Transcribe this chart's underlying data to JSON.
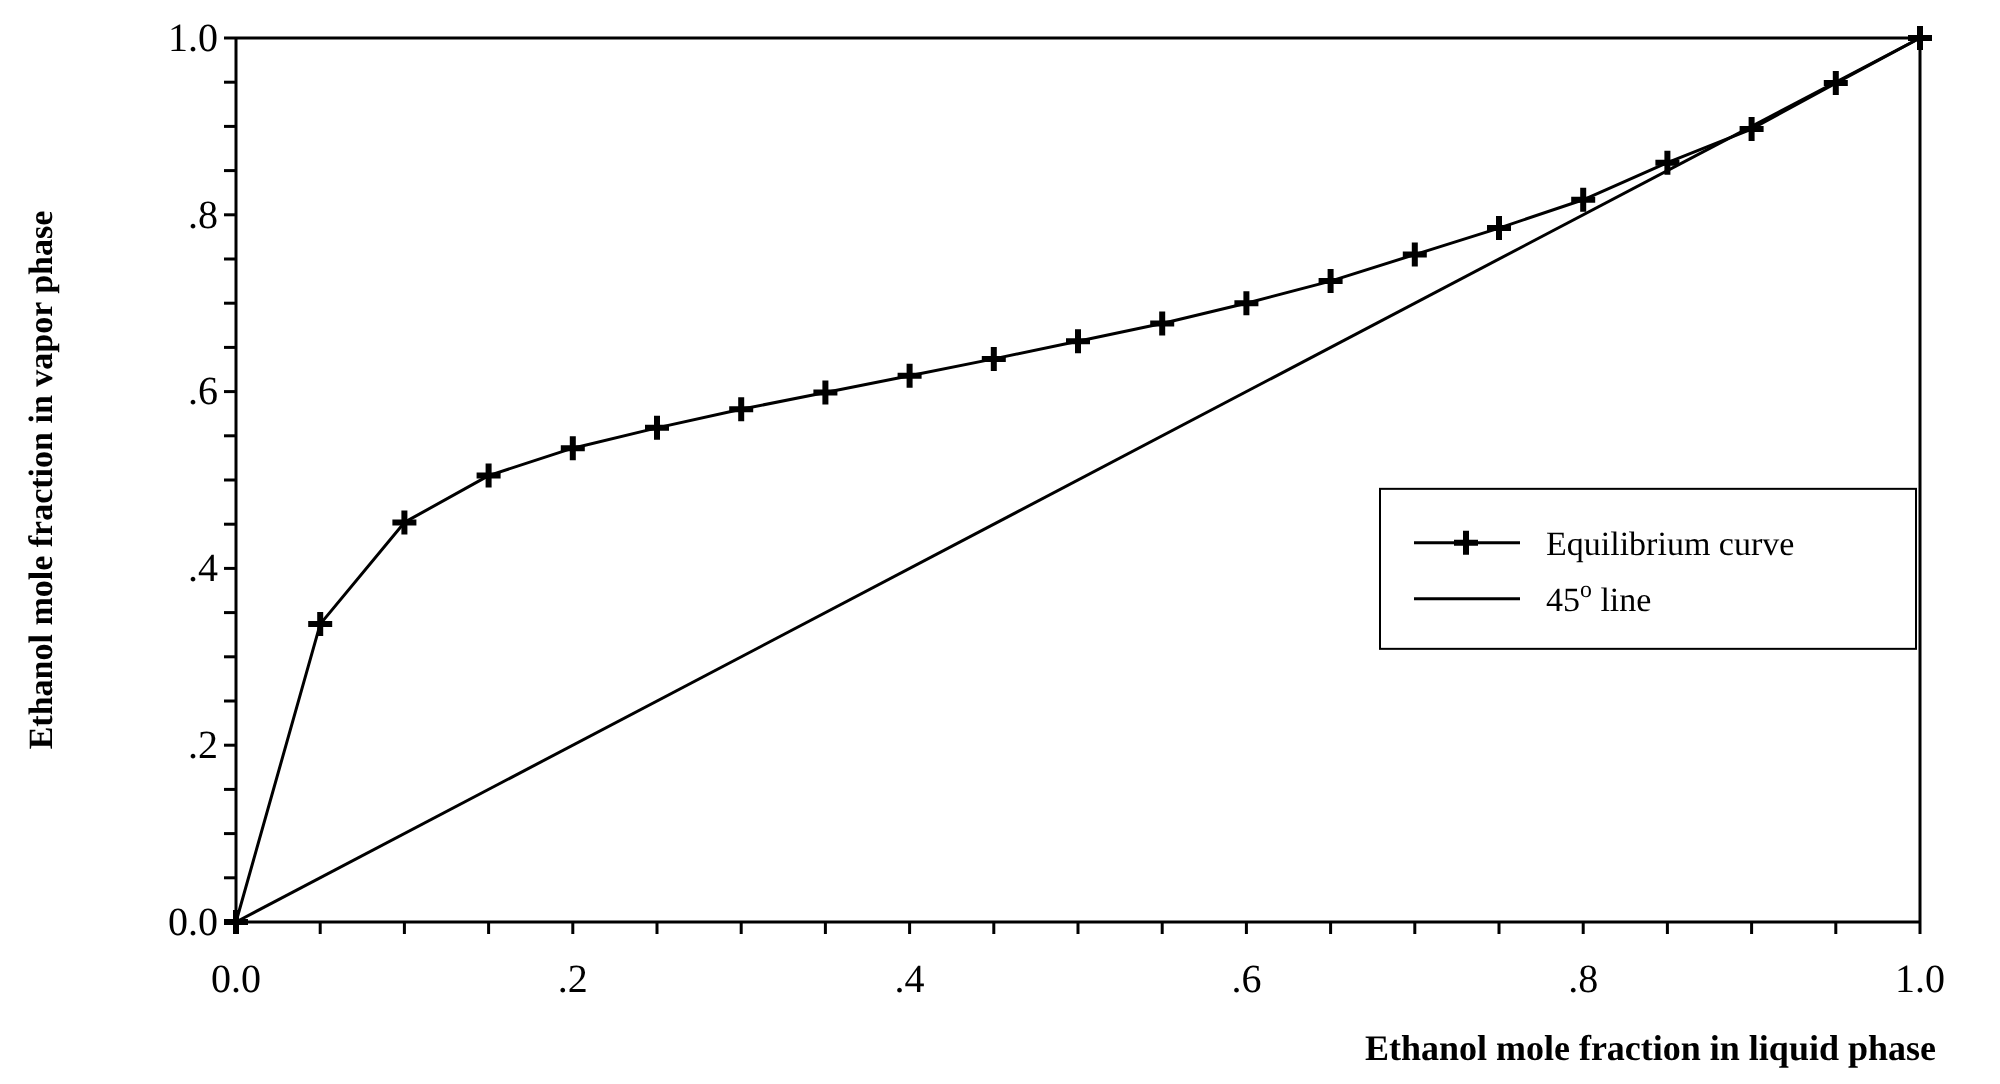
{
  "chart_data": {
    "type": "line",
    "xlabel": "Ethanol mole fraction in liquid phase",
    "ylabel": "Ethanol mole fraction in vapor phase",
    "xlim": [
      0,
      1
    ],
    "ylim": [
      0,
      1
    ],
    "xticks": [
      {
        "value": 0,
        "label": "0.0"
      },
      {
        "value": 0.05,
        "label": null
      },
      {
        "value": 0.1,
        "label": null
      },
      {
        "value": 0.15,
        "label": null
      },
      {
        "value": 0.2,
        "label": ".2"
      },
      {
        "value": 0.25,
        "label": null
      },
      {
        "value": 0.3,
        "label": null
      },
      {
        "value": 0.35,
        "label": null
      },
      {
        "value": 0.4,
        "label": ".4"
      },
      {
        "value": 0.45,
        "label": null
      },
      {
        "value": 0.5,
        "label": null
      },
      {
        "value": 0.55,
        "label": null
      },
      {
        "value": 0.6,
        "label": ".6"
      },
      {
        "value": 0.65,
        "label": null
      },
      {
        "value": 0.7,
        "label": null
      },
      {
        "value": 0.75,
        "label": null
      },
      {
        "value": 0.8,
        "label": ".8"
      },
      {
        "value": 0.85,
        "label": null
      },
      {
        "value": 0.9,
        "label": null
      },
      {
        "value": 0.95,
        "label": null
      },
      {
        "value": 1,
        "label": "1.0"
      }
    ],
    "yticks": [
      {
        "value": 0,
        "label": "0.0"
      },
      {
        "value": 0.05,
        "label": null
      },
      {
        "value": 0.1,
        "label": null
      },
      {
        "value": 0.15,
        "label": null
      },
      {
        "value": 0.2,
        "label": ".2"
      },
      {
        "value": 0.25,
        "label": null
      },
      {
        "value": 0.3,
        "label": null
      },
      {
        "value": 0.35,
        "label": null
      },
      {
        "value": 0.4,
        "label": ".4"
      },
      {
        "value": 0.45,
        "label": null
      },
      {
        "value": 0.5,
        "label": null
      },
      {
        "value": 0.55,
        "label": null
      },
      {
        "value": 0.6,
        "label": ".6"
      },
      {
        "value": 0.65,
        "label": null
      },
      {
        "value": 0.7,
        "label": null
      },
      {
        "value": 0.75,
        "label": null
      },
      {
        "value": 0.8,
        "label": ".8"
      },
      {
        "value": 0.85,
        "label": null
      },
      {
        "value": 0.9,
        "label": null
      },
      {
        "value": 0.95,
        "label": null
      },
      {
        "value": 1,
        "label": "1.0"
      }
    ],
    "grid": false,
    "legend": "right",
    "series": [
      {
        "name": "Equilibrium curve",
        "color": "#000000",
        "marker": "cross",
        "x": [
          0,
          0.05,
          0.1,
          0.15,
          0.2,
          0.25,
          0.3,
          0.35,
          0.4,
          0.45,
          0.5,
          0.55,
          0.6,
          0.65,
          0.7,
          0.75,
          0.8,
          0.85,
          0.9,
          0.95,
          1
        ],
        "values": [
          0,
          0.337,
          0.452,
          0.505,
          0.536,
          0.559,
          0.58,
          0.599,
          0.618,
          0.637,
          0.657,
          0.677,
          0.7,
          0.725,
          0.755,
          0.785,
          0.817,
          0.859,
          0.897,
          0.949,
          1
        ]
      },
      {
        "name": "45$^{o}$ line",
        "color": "#000000",
        "marker": "none",
        "x": [
          0,
          1
        ],
        "values": [
          0,
          1
        ]
      }
    ]
  }
}
